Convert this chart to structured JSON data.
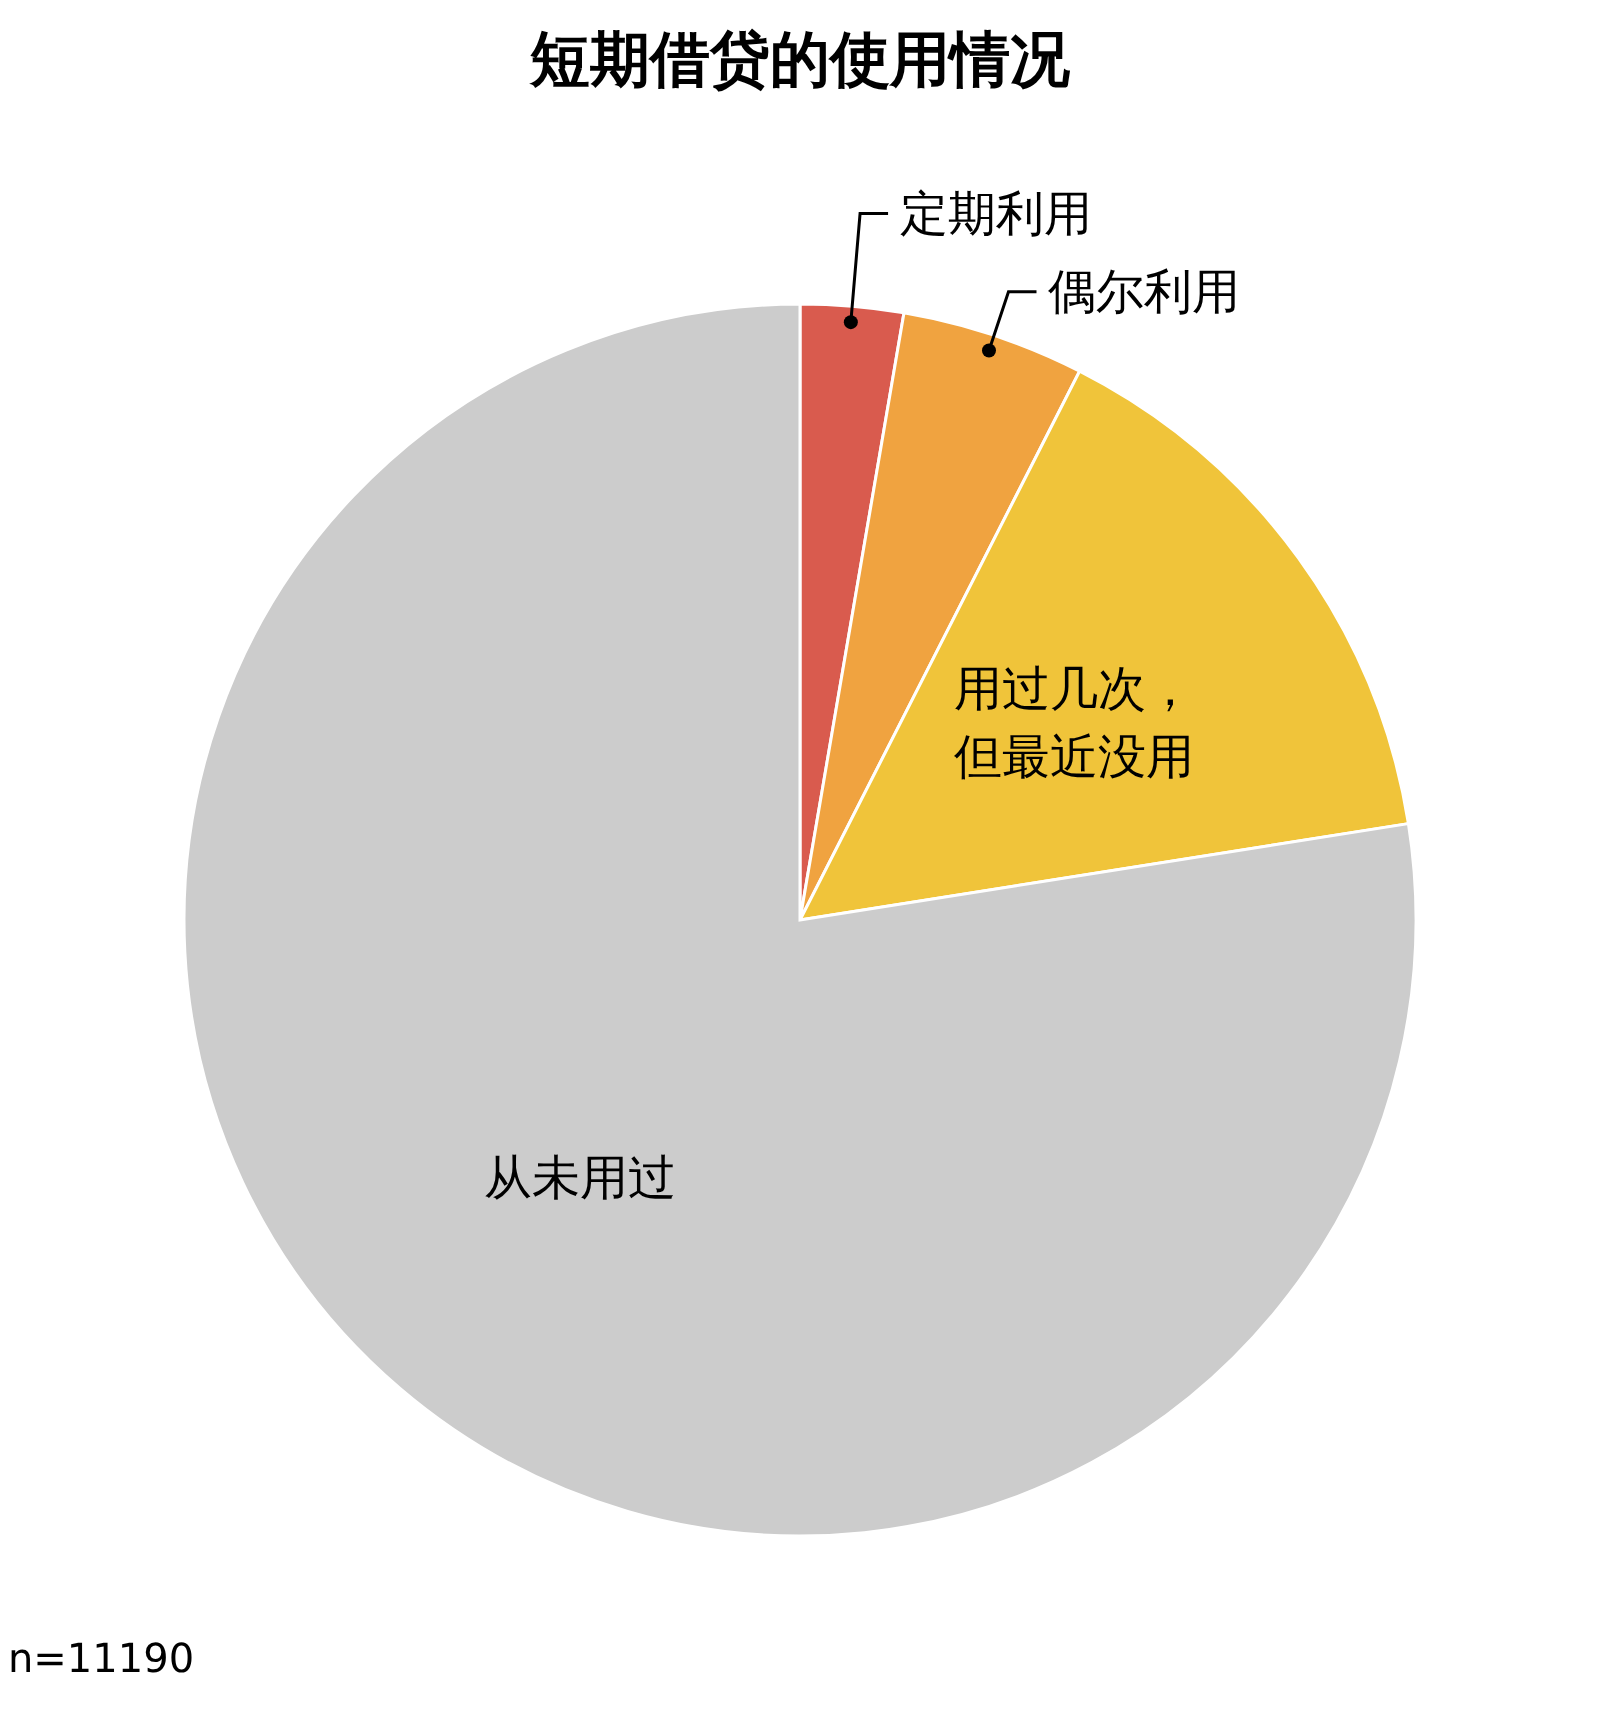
{
  "chart_data": {
    "type": "pie",
    "title": "短期借贷的使用情况",
    "categories": [
      "定期利用",
      "偶尔利用",
      "用过几次，但最近没用",
      "从未用过"
    ],
    "values": [
      2.7,
      4.8,
      15.0,
      77.5
    ],
    "colors": [
      "#d95b4e",
      "#f0a340",
      "#f0c43a",
      "#cccccc"
    ],
    "annotations": [
      "n=11190"
    ]
  }
}
